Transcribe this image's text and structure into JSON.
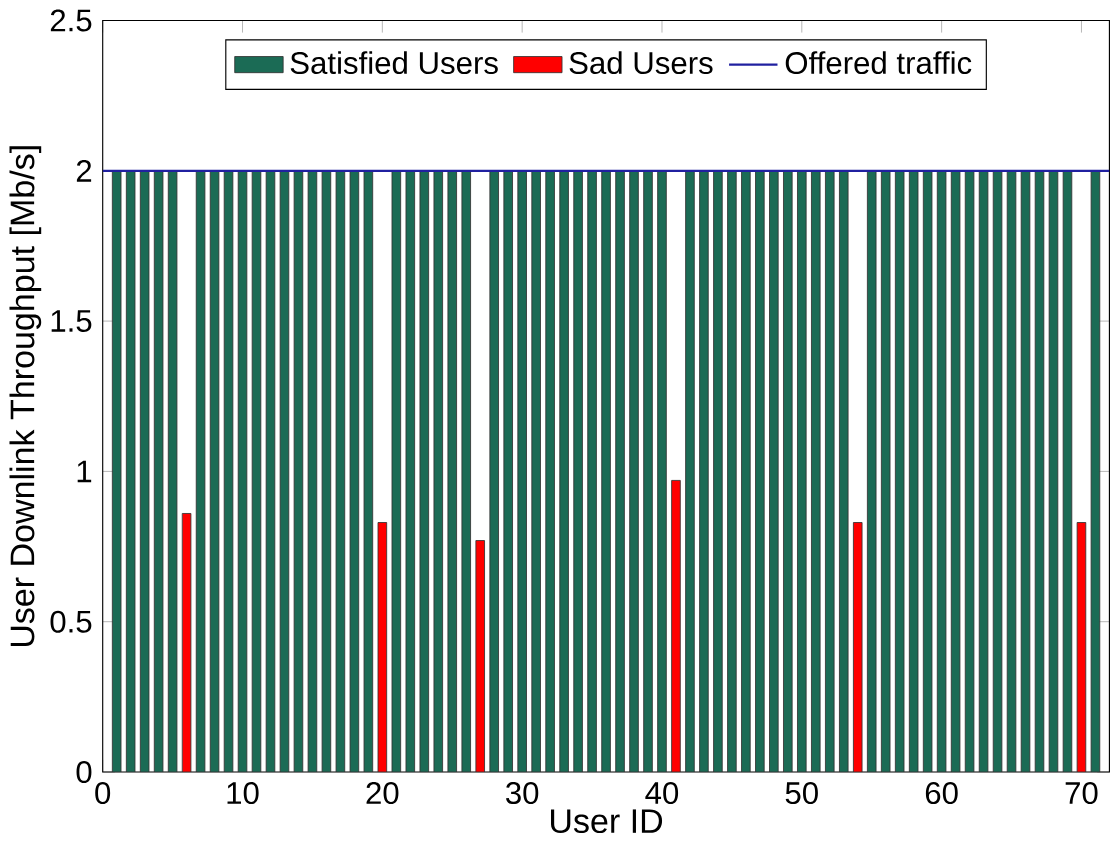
{
  "chart_data": {
    "type": "bar",
    "xlabel": "User ID",
    "ylabel": "User Downlink Throughput [Mb/s]",
    "x": [
      1,
      2,
      3,
      4,
      5,
      6,
      7,
      8,
      9,
      10,
      11,
      12,
      13,
      14,
      15,
      16,
      17,
      18,
      19,
      20,
      21,
      22,
      23,
      24,
      25,
      26,
      27,
      28,
      29,
      30,
      31,
      32,
      33,
      34,
      35,
      36,
      37,
      38,
      39,
      40,
      41,
      42,
      43,
      44,
      45,
      46,
      47,
      48,
      49,
      50,
      51,
      52,
      53,
      54,
      55,
      56,
      57,
      58,
      59,
      60,
      61,
      62,
      63,
      64,
      65,
      66,
      67,
      68,
      69,
      70,
      71
    ],
    "series": [
      {
        "name": "Satisfied Users",
        "color": "#1b6b55",
        "values": [
          2,
          2,
          2,
          2,
          2,
          null,
          2,
          2,
          2,
          2,
          2,
          2,
          2,
          2,
          2,
          2,
          2,
          2,
          2,
          null,
          2,
          2,
          2,
          2,
          2,
          2,
          null,
          2,
          2,
          2,
          2,
          2,
          2,
          2,
          2,
          2,
          2,
          2,
          2,
          2,
          null,
          2,
          2,
          2,
          2,
          2,
          2,
          2,
          2,
          2,
          2,
          2,
          2,
          null,
          2,
          2,
          2,
          2,
          2,
          2,
          2,
          2,
          2,
          2,
          2,
          2,
          2,
          2,
          2,
          null,
          2
        ]
      },
      {
        "name": "Sad Users",
        "color": "#ff0000",
        "values": [
          null,
          null,
          null,
          null,
          null,
          0.86,
          null,
          null,
          null,
          null,
          null,
          null,
          null,
          null,
          null,
          null,
          null,
          null,
          null,
          0.83,
          null,
          null,
          null,
          null,
          null,
          null,
          0.77,
          null,
          null,
          null,
          null,
          null,
          null,
          null,
          null,
          null,
          null,
          null,
          null,
          null,
          0.97,
          null,
          null,
          null,
          null,
          null,
          null,
          null,
          null,
          null,
          null,
          null,
          null,
          0.83,
          null,
          null,
          null,
          null,
          null,
          null,
          null,
          null,
          null,
          null,
          null,
          null,
          null,
          null,
          null,
          0.83,
          null
        ]
      },
      {
        "name": "Offered traffic",
        "type": "line",
        "color": "#2020a0",
        "x": [
          0,
          72
        ],
        "values": [
          2,
          2
        ]
      }
    ],
    "xlim": [
      0,
      72
    ],
    "ylim": [
      0,
      2.5
    ],
    "xticks": [
      0,
      10,
      20,
      30,
      40,
      50,
      60,
      70
    ],
    "yticks": [
      0,
      0.5,
      1,
      1.5,
      2,
      2.5
    ],
    "legend": "top",
    "grid": false
  }
}
